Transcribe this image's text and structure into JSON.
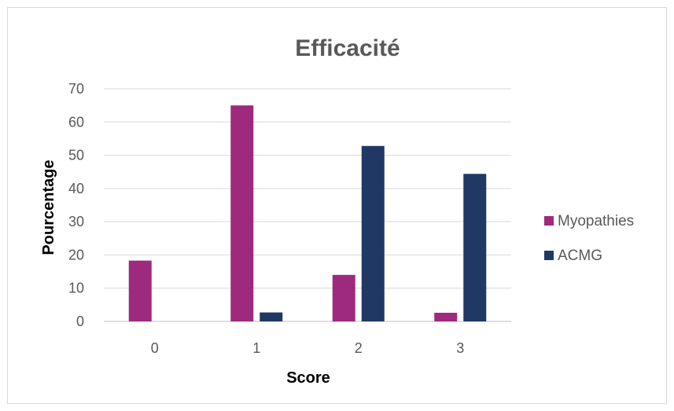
{
  "chart_data": {
    "type": "bar",
    "title": "Efficacité",
    "xlabel": "Score",
    "ylabel": "Pourcentage",
    "categories": [
      "0",
      "1",
      "2",
      "3"
    ],
    "ylim": [
      0,
      70
    ],
    "yticks": [
      0,
      10,
      20,
      30,
      40,
      50,
      60,
      70
    ],
    "grid": true,
    "legend_position": "right",
    "series": [
      {
        "name": "Myopathies",
        "color": "#9e2a7d",
        "values": [
          18.3,
          65,
          14,
          2.6
        ]
      },
      {
        "name": "ACMG",
        "color": "#203864",
        "values": [
          0,
          2.7,
          52.8,
          44.4
        ]
      }
    ]
  }
}
